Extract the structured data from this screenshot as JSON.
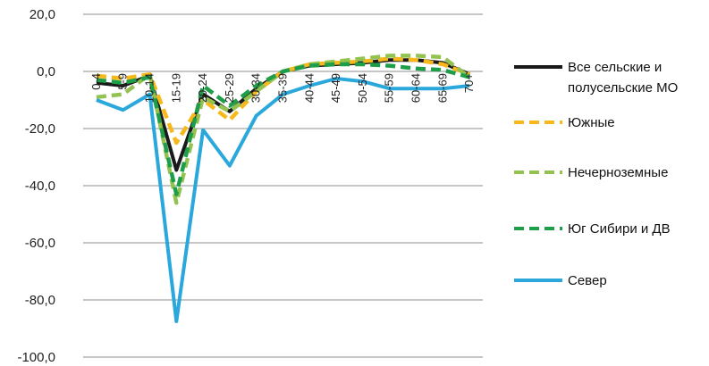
{
  "chart_data": {
    "type": "line",
    "title": "",
    "xlabel": "",
    "ylabel": "",
    "ylim": [
      -100,
      20
    ],
    "yticks": [
      20,
      0,
      -20,
      -40,
      -60,
      -80,
      -100
    ],
    "ytick_labels": [
      "20,0",
      "0,0",
      "-20,0",
      "-40,0",
      "-60,0",
      "-80,0",
      "-100,0"
    ],
    "categories": [
      "0-4",
      "5-9",
      "10-14",
      "15-19",
      "20-24",
      "25-29",
      "30-34",
      "35-39",
      "40-44",
      "45-49",
      "50-54",
      "55-59",
      "60-64",
      "65-69",
      "70+"
    ],
    "grid": "horizontal",
    "legend_position": "right",
    "series": [
      {
        "name": "Все сельские и полусельские МО",
        "color": "#1a1a1a",
        "dash": "solid",
        "values": [
          -4,
          -5,
          -1.5,
          -34.5,
          -8,
          -14,
          -6,
          0,
          2,
          2.5,
          3,
          4,
          4,
          3,
          -1
        ]
      },
      {
        "name": "Южные",
        "color": "#f7b81c",
        "dash": "dashed",
        "values": [
          -1.5,
          -2.5,
          -1,
          -25,
          -10,
          -17,
          -7,
          0,
          2.5,
          3,
          3.5,
          4.5,
          4,
          2.5,
          -1
        ]
      },
      {
        "name": "Нечерноземные",
        "color": "#92c350",
        "dash": "dashed",
        "values": [
          -9,
          -8,
          -1,
          -46,
          -9,
          -14,
          -7,
          0,
          2.5,
          3.5,
          4.5,
          5.5,
          5.5,
          5,
          -2
        ]
      },
      {
        "name": "Юг Сибири и ДВ",
        "color": "#1f9e4a",
        "dash": "dashed",
        "values": [
          -3,
          -4,
          -2,
          -43,
          -5,
          -12,
          -5,
          0,
          2,
          2.5,
          2.5,
          2,
          1,
          0.5,
          -2
        ]
      },
      {
        "name": "Север",
        "color": "#2aa8dc",
        "dash": "solid",
        "values": [
          -10,
          -13.5,
          -8,
          -87.5,
          -20.5,
          -33,
          -15.5,
          -8,
          -5,
          -2.5,
          -3.5,
          -6,
          -6,
          -6,
          -5
        ]
      }
    ]
  },
  "legend_lines": [
    [
      "Все сельские и",
      "полусельские МО"
    ],
    [
      "Южные"
    ],
    [
      "Нечерноземные"
    ],
    [
      "Юг Сибири и ДВ"
    ],
    [
      "Север"
    ]
  ]
}
